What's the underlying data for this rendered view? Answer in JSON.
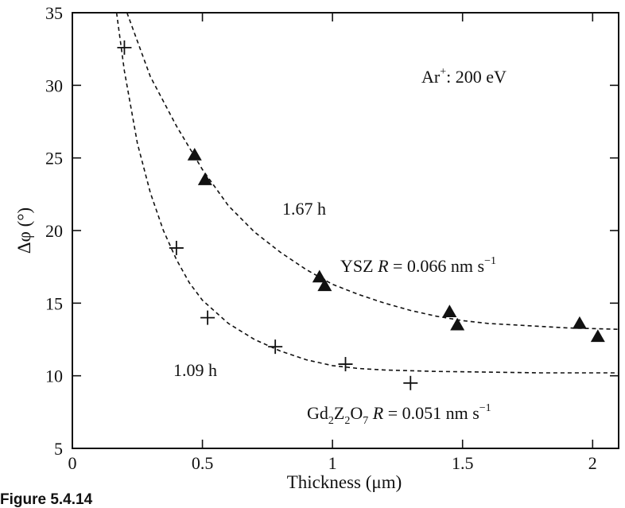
{
  "chart_data": {
    "type": "scatter",
    "xlabel": "Thickness (μm)",
    "ylabel": "Δφ (°)",
    "xlim": [
      0,
      2.1
    ],
    "ylim": [
      5,
      35
    ],
    "x_ticks": [
      0,
      0.5,
      1,
      1.5,
      2
    ],
    "x_tick_labels": [
      "0",
      "0.5",
      "1",
      "1.5",
      "2"
    ],
    "y_ticks": [
      5,
      10,
      15,
      20,
      25,
      30,
      35
    ],
    "y_tick_labels": [
      "5",
      "10",
      "15",
      "20",
      "25",
      "30",
      "35"
    ],
    "grid": false,
    "series": [
      {
        "marker": "filled-triangle",
        "color": "#111111",
        "points": [
          {
            "x": 0.47,
            "y": 25.2
          },
          {
            "x": 0.51,
            "y": 23.5
          },
          {
            "x": 0.95,
            "y": 16.8
          },
          {
            "x": 0.97,
            "y": 16.2
          },
          {
            "x": 1.45,
            "y": 14.4
          },
          {
            "x": 1.48,
            "y": 13.5
          },
          {
            "x": 1.95,
            "y": 13.6
          },
          {
            "x": 2.02,
            "y": 12.7
          }
        ],
        "fit_curve": {
          "style": "dashed",
          "points": [
            [
              0.21,
              35
            ],
            [
              0.3,
              30.6
            ],
            [
              0.4,
              27.2
            ],
            [
              0.5,
              24.2
            ],
            [
              0.6,
              21.7
            ],
            [
              0.7,
              19.9
            ],
            [
              0.8,
              18.5
            ],
            [
              0.9,
              17.3
            ],
            [
              1.0,
              16.3
            ],
            [
              1.1,
              15.6
            ],
            [
              1.2,
              15.0
            ],
            [
              1.3,
              14.5
            ],
            [
              1.4,
              14.1
            ],
            [
              1.5,
              13.8
            ],
            [
              1.6,
              13.6
            ],
            [
              1.7,
              13.5
            ],
            [
              1.8,
              13.4
            ],
            [
              1.9,
              13.3
            ],
            [
              2.0,
              13.25
            ],
            [
              2.1,
              13.2
            ]
          ]
        }
      },
      {
        "marker": "plus",
        "color": "#111111",
        "points": [
          {
            "x": 0.2,
            "y": 32.6
          },
          {
            "x": 0.4,
            "y": 18.8
          },
          {
            "x": 0.52,
            "y": 14.0
          },
          {
            "x": 0.78,
            "y": 12.0
          },
          {
            "x": 1.05,
            "y": 10.8
          },
          {
            "x": 1.3,
            "y": 9.5
          }
        ],
        "fit_curve": {
          "style": "dashed",
          "points": [
            [
              0.17,
              35
            ],
            [
              0.2,
              31.0
            ],
            [
              0.25,
              26.0
            ],
            [
              0.3,
              22.6
            ],
            [
              0.35,
              20.0
            ],
            [
              0.4,
              18.0
            ],
            [
              0.45,
              16.4
            ],
            [
              0.5,
              15.2
            ],
            [
              0.6,
              13.6
            ],
            [
              0.7,
              12.5
            ],
            [
              0.8,
              11.7
            ],
            [
              0.9,
              11.1
            ],
            [
              1.0,
              10.7
            ],
            [
              1.1,
              10.5
            ],
            [
              1.2,
              10.4
            ],
            [
              1.4,
              10.3
            ],
            [
              1.6,
              10.25
            ],
            [
              1.8,
              10.2
            ],
            [
              2.1,
              10.2
            ]
          ]
        }
      }
    ],
    "annotations": {
      "ion": {
        "main": "Ar",
        "sup": "+",
        "rest": ": 200 eV"
      },
      "ysz_time": "1.67 h",
      "ysz_rate": {
        "prefix": "YSZ ",
        "var": "R",
        "value": " = 0.066 nm s",
        "exp": "−1"
      },
      "gzo_time": "1.09 h",
      "gzo_rate": {
        "p1": "Gd",
        "s1": "2",
        "p2": "Z",
        "s2": "2",
        "p3": "O",
        "s3": "7",
        "var": "R",
        "value": " = 0.051 nm s",
        "exp": "−1"
      }
    }
  },
  "caption": "Figure 5.4.14"
}
